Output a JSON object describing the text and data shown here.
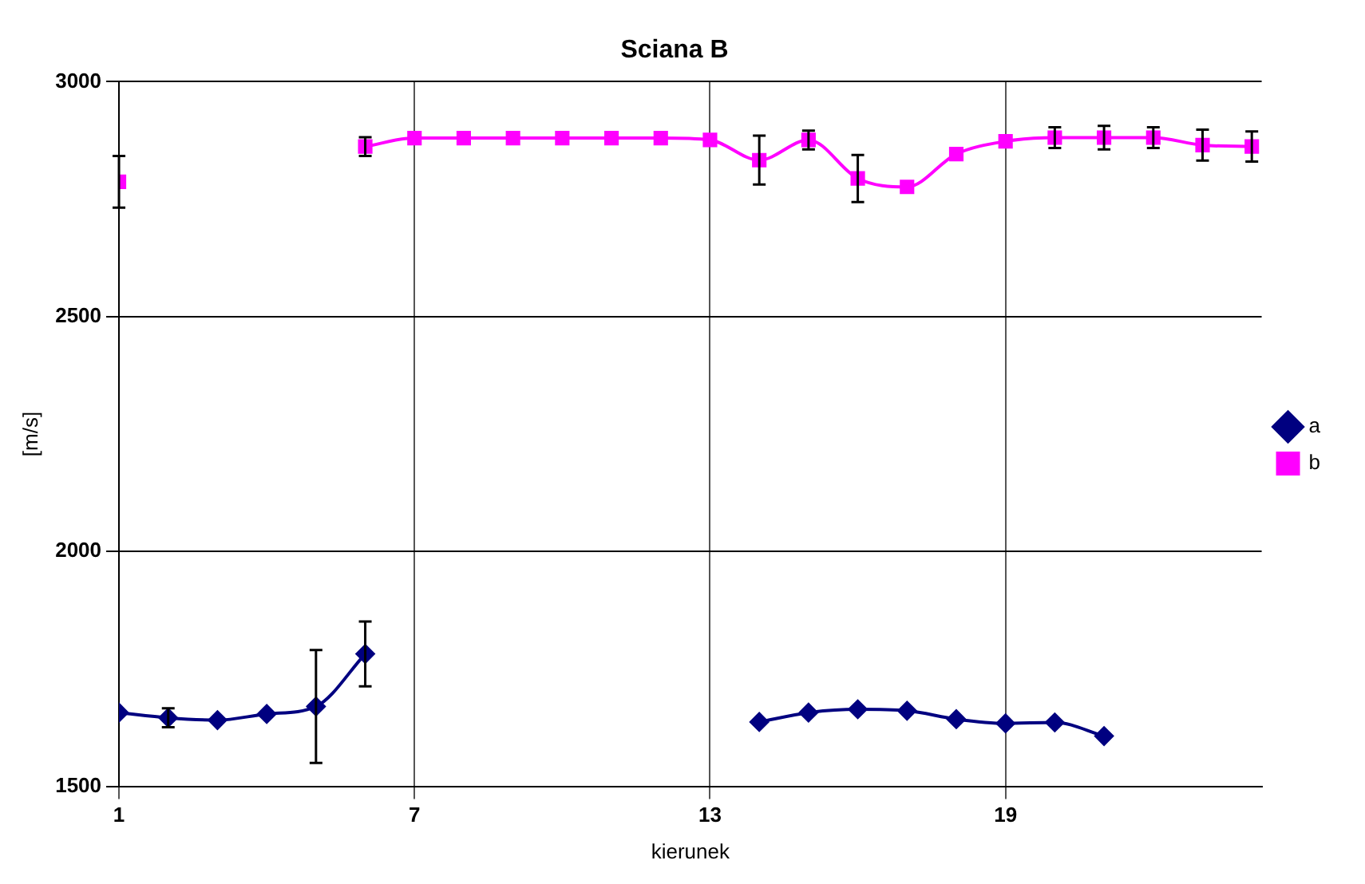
{
  "chart_data": {
    "type": "line",
    "title": "Sciana B",
    "xlabel": "kierunek",
    "ylabel": "[m/s]",
    "x": [
      1,
      2,
      3,
      4,
      5,
      6,
      7,
      8,
      9,
      10,
      11,
      12,
      13,
      14,
      15,
      16,
      17,
      18,
      19,
      20,
      21,
      22,
      23,
      24
    ],
    "series": [
      {
        "name": "a",
        "color": "#000080",
        "marker": "diamond",
        "values": [
          1657,
          1646,
          1641,
          1654,
          1670,
          1782,
          null,
          null,
          null,
          null,
          null,
          null,
          null,
          1637,
          1657,
          1664,
          1661,
          1643,
          1634,
          1636,
          1607,
          null,
          null,
          null
        ],
        "errors": [
          null,
          20,
          null,
          null,
          120,
          69,
          null,
          null,
          null,
          null,
          null,
          null,
          null,
          null,
          null,
          null,
          null,
          null,
          null,
          null,
          null,
          null,
          null,
          null
        ]
      },
      {
        "name": "b",
        "color": "#ff00ff",
        "marker": "square",
        "values": [
          2787,
          null,
          null,
          null,
          null,
          2862,
          2880,
          2880,
          2880,
          2880,
          2880,
          2880,
          2876,
          2833,
          2876,
          2794,
          2776,
          2846,
          2873,
          2881,
          2881,
          2881,
          2865,
          2862
        ],
        "errors": [
          55,
          null,
          null,
          null,
          null,
          20,
          null,
          null,
          null,
          null,
          null,
          null,
          null,
          52,
          20,
          50,
          null,
          null,
          null,
          22,
          25,
          22,
          33,
          32
        ]
      }
    ],
    "xlim": [
      1,
      24.2
    ],
    "xticks": [
      1,
      7,
      13,
      19
    ],
    "ylim": [
      1500,
      3000
    ],
    "yticks": [
      1500,
      2000,
      2500,
      3000
    ],
    "grid": true,
    "legend": "right",
    "line_style": "solid"
  }
}
